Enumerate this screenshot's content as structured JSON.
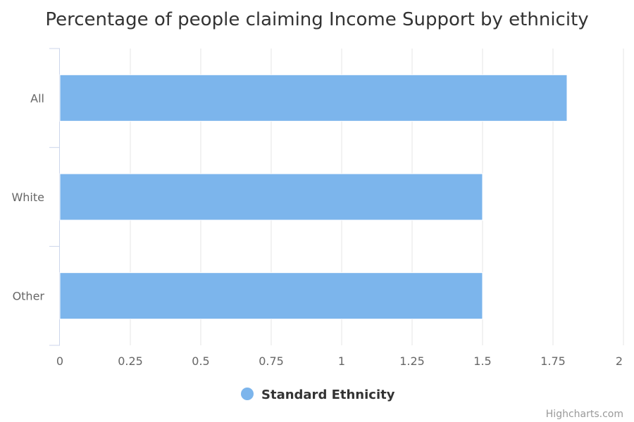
{
  "chart_data": {
    "type": "bar",
    "orientation": "horizontal",
    "title": "Percentage of people claiming Income Support by ethnicity",
    "categories": [
      "All",
      "White",
      "Other"
    ],
    "series": [
      {
        "name": "Standard Ethnicity",
        "values": [
          1.8,
          1.5,
          1.5
        ],
        "color": "#7cb5ec"
      }
    ],
    "xlim": [
      0,
      2
    ],
    "ticks": [
      0,
      0.25,
      0.5,
      0.75,
      1,
      1.25,
      1.5,
      1.75,
      2
    ],
    "grid": true,
    "legend_position": "bottom-center"
  },
  "credits": "Highcharts.com"
}
